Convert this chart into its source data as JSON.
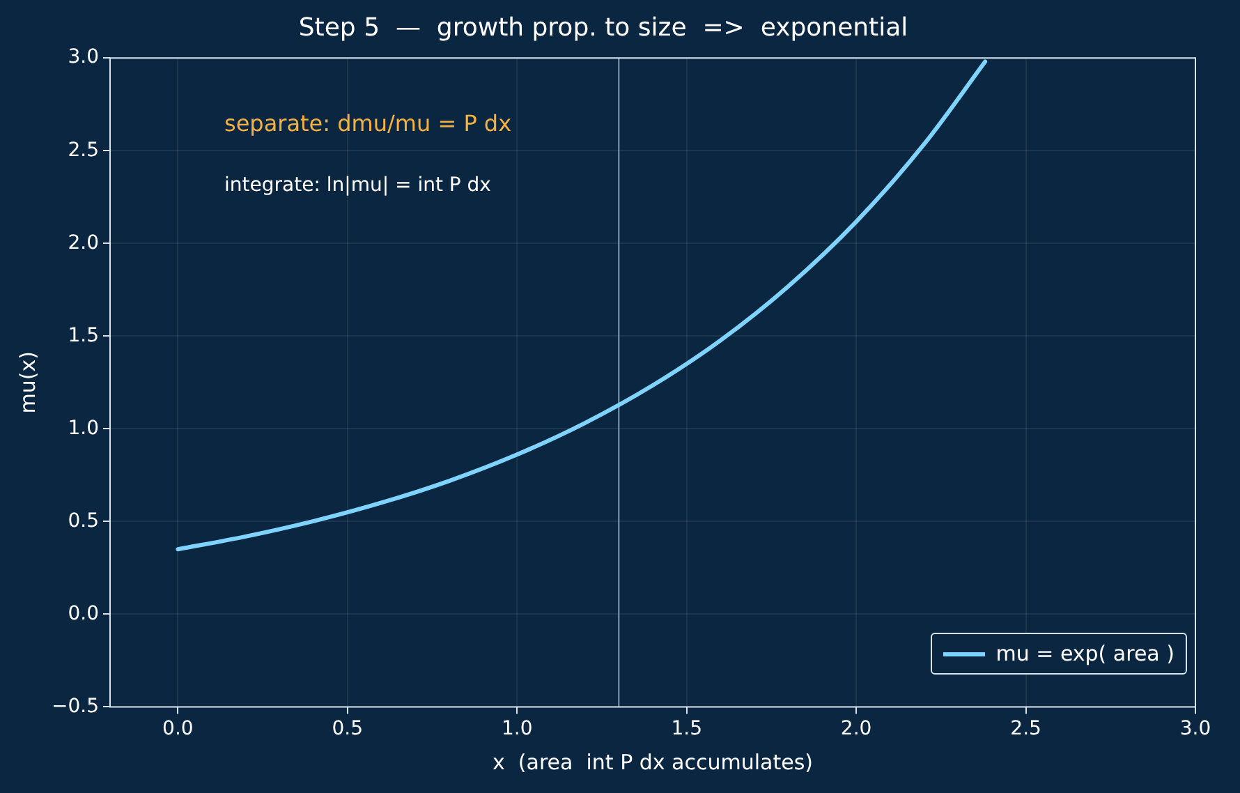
{
  "chart_data": {
    "type": "line",
    "title": "Step 5  —  growth prop. to size  =>  exponential",
    "xlabel": "x  (area  int P dx accumulates)",
    "ylabel": "mu(x)",
    "x": [
      0,
      0.2,
      0.4,
      0.6,
      0.8,
      1.0,
      1.2,
      1.4,
      1.6,
      1.8,
      2.0,
      2.2,
      2.38
    ],
    "series": [
      {
        "name": "mu = exp( area )",
        "color": "#7fd3ff",
        "values": [
          0.35,
          0.419,
          0.502,
          0.601,
          0.719,
          0.861,
          1.031,
          1.234,
          1.477,
          1.769,
          2.117,
          2.535,
          2.98
        ]
      }
    ],
    "xlim": [
      -0.2,
      3.0
    ],
    "ylim": [
      -0.5,
      3.0
    ],
    "xticks": [
      {
        "value": 0,
        "label": "0.0"
      },
      {
        "value": 0.5,
        "label": "0.5"
      },
      {
        "value": 1,
        "label": "1.0"
      },
      {
        "value": 1.5,
        "label": "1.5"
      },
      {
        "value": 2,
        "label": "2.0"
      },
      {
        "value": 2.5,
        "label": "2.5"
      },
      {
        "value": 3,
        "label": "3.0"
      }
    ],
    "yticks": [
      {
        "value": -0.5,
        "label": "−0.5"
      },
      {
        "value": 0,
        "label": "0.0"
      },
      {
        "value": 0.5,
        "label": "0.5"
      },
      {
        "value": 1,
        "label": "1.0"
      },
      {
        "value": 1.5,
        "label": "1.5"
      },
      {
        "value": 2,
        "label": "2.0"
      },
      {
        "value": 2.5,
        "label": "2.5"
      },
      {
        "value": 3,
        "label": "3.0"
      }
    ],
    "ref_lines": [
      {
        "axis": "x",
        "value": 1.3,
        "color": "#7f9fb5"
      }
    ],
    "annotations": [
      "separate: dmu/mu = P dx",
      "integrate: ln|mu| = int P dx"
    ],
    "grid": true,
    "legend": "bottom right",
    "marker": "none",
    "line_style": "solid"
  }
}
